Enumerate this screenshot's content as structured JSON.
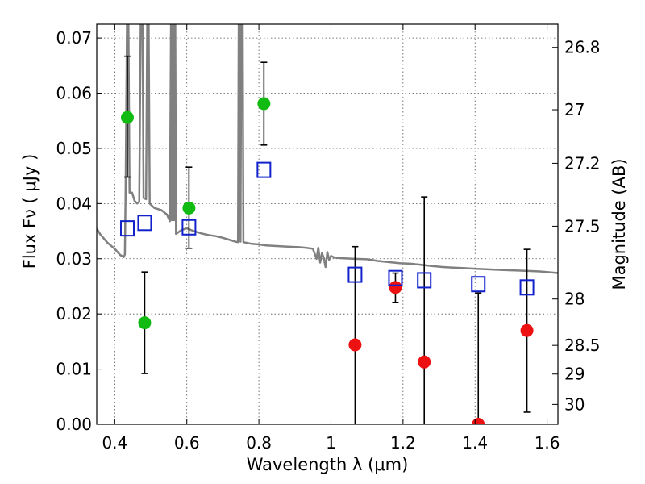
{
  "chart_data": {
    "type": "scatter",
    "xlabel": "Wavelength  λ (μm)",
    "ylabel": "Flux  Fν  ( μJy )",
    "ylabel_right": "Magnitude (AB)",
    "xlim": [
      0.35,
      1.63
    ],
    "ylim": [
      0.0,
      0.0725
    ],
    "grid": true,
    "x_ticks": [
      0.4,
      0.6,
      0.8,
      1.0,
      1.2,
      1.4,
      1.6
    ],
    "x_tick_labels": [
      "0.4",
      "0.6",
      "0.8",
      "1",
      "1.2",
      "1.4",
      "1.6"
    ],
    "y_ticks": [
      0.0,
      0.01,
      0.02,
      0.03,
      0.04,
      0.05,
      0.06,
      0.07
    ],
    "y_tick_labels": [
      "0.00",
      "0.01",
      "0.02",
      "0.03",
      "0.04",
      "0.05",
      "0.06",
      "0.07"
    ],
    "right_ticks": [
      {
        "label": "26.8",
        "flux": 0.0683
      },
      {
        "label": "27",
        "flux": 0.057
      },
      {
        "label": "27.2",
        "flux": 0.0473
      },
      {
        "label": "27.5",
        "flux": 0.0359
      },
      {
        "label": "28",
        "flux": 0.0227
      },
      {
        "label": "28.5",
        "flux": 0.0143
      },
      {
        "label": "29",
        "flux": 0.0091
      },
      {
        "label": "30",
        "flux": 0.0036
      }
    ],
    "colors": {
      "green": "#11bb11",
      "red": "#ee1111",
      "blue": "#1122cc",
      "model": "#808080",
      "errorbar": "#000000",
      "grid": "#555555"
    },
    "series": [
      {
        "marker": "circle",
        "color": "green",
        "points": [
          {
            "x": 0.435,
            "y": 0.0556,
            "ylo": 0.0448,
            "yhi": 0.0667
          },
          {
            "x": 0.483,
            "y": 0.0184,
            "ylo": 0.0092,
            "yhi": 0.0276
          },
          {
            "x": 0.606,
            "y": 0.0392,
            "ylo": 0.0319,
            "yhi": 0.0466
          },
          {
            "x": 0.814,
            "y": 0.0581,
            "ylo": 0.0506,
            "yhi": 0.0656
          }
        ]
      },
      {
        "marker": "circle",
        "color": "red",
        "points": [
          {
            "x": 1.067,
            "y": 0.0144,
            "ylo": 0.0,
            "yhi": 0.0322
          },
          {
            "x": 1.179,
            "y": 0.0248,
            "ylo": 0.0221,
            "yhi": 0.0274
          },
          {
            "x": 1.259,
            "y": 0.0113,
            "ylo": 0.0,
            "yhi": 0.0412
          },
          {
            "x": 1.409,
            "y": 0.0,
            "ylo": 0.0,
            "yhi": 0.0238
          },
          {
            "x": 1.544,
            "y": 0.017,
            "ylo": 0.0022,
            "yhi": 0.0317
          }
        ]
      },
      {
        "marker": "open-square",
        "color": "blue",
        "points": [
          {
            "x": 0.435,
            "y": 0.0355
          },
          {
            "x": 0.483,
            "y": 0.0365
          },
          {
            "x": 0.606,
            "y": 0.0357
          },
          {
            "x": 0.814,
            "y": 0.0461
          },
          {
            "x": 1.067,
            "y": 0.0271
          },
          {
            "x": 1.179,
            "y": 0.0265
          },
          {
            "x": 1.259,
            "y": 0.0261
          },
          {
            "x": 1.409,
            "y": 0.0254
          },
          {
            "x": 1.544,
            "y": 0.0248
          }
        ]
      }
    ],
    "model_spectrum": {
      "color": "model",
      "points": [
        [
          0.35,
          0.0355
        ],
        [
          0.36,
          0.0344
        ],
        [
          0.38,
          0.0329
        ],
        [
          0.4,
          0.0318
        ],
        [
          0.415,
          0.0307
        ],
        [
          0.425,
          0.0303
        ],
        [
          0.428,
          0.0308
        ],
        [
          0.43,
          0.042
        ],
        [
          0.434,
          0.0725
        ],
        [
          0.438,
          0.0725
        ],
        [
          0.441,
          0.042
        ],
        [
          0.448,
          0.042
        ],
        [
          0.455,
          0.0405
        ],
        [
          0.462,
          0.04
        ],
        [
          0.468,
          0.0403
        ],
        [
          0.472,
          0.0725
        ],
        [
          0.477,
          0.0725
        ],
        [
          0.48,
          0.041
        ],
        [
          0.487,
          0.0408
        ],
        [
          0.49,
          0.0725
        ],
        [
          0.494,
          0.0725
        ],
        [
          0.497,
          0.04
        ],
        [
          0.51,
          0.0392
        ],
        [
          0.53,
          0.0388
        ],
        [
          0.545,
          0.038
        ],
        [
          0.553,
          0.0368
        ],
        [
          0.556,
          0.0725
        ],
        [
          0.558,
          0.037
        ],
        [
          0.56,
          0.0725
        ],
        [
          0.562,
          0.037
        ],
        [
          0.564,
          0.0725
        ],
        [
          0.566,
          0.037
        ],
        [
          0.568,
          0.0725
        ],
        [
          0.57,
          0.0345
        ],
        [
          0.585,
          0.0352
        ],
        [
          0.6,
          0.0355
        ],
        [
          0.62,
          0.035
        ],
        [
          0.64,
          0.0346
        ],
        [
          0.66,
          0.0343
        ],
        [
          0.68,
          0.0341
        ],
        [
          0.7,
          0.0338
        ],
        [
          0.72,
          0.0334
        ],
        [
          0.735,
          0.0331
        ],
        [
          0.742,
          0.033
        ],
        [
          0.744,
          0.0725
        ],
        [
          0.747,
          0.0725
        ],
        [
          0.749,
          0.0331
        ],
        [
          0.751,
          0.0725
        ],
        [
          0.755,
          0.0725
        ],
        [
          0.757,
          0.033
        ],
        [
          0.78,
          0.0327
        ],
        [
          0.8,
          0.0326
        ],
        [
          0.82,
          0.0324
        ],
        [
          0.85,
          0.0323
        ],
        [
          0.88,
          0.0322
        ],
        [
          0.91,
          0.0321
        ],
        [
          0.93,
          0.032
        ],
        [
          0.95,
          0.0318
        ],
        [
          0.96,
          0.03
        ],
        [
          0.965,
          0.032
        ],
        [
          0.97,
          0.0293
        ],
        [
          0.975,
          0.031
        ],
        [
          0.98,
          0.0302
        ],
        [
          0.985,
          0.0285
        ],
        [
          0.99,
          0.0312
        ],
        [
          0.995,
          0.0298
        ],
        [
          1.0,
          0.0305
        ],
        [
          1.01,
          0.0302
        ],
        [
          1.03,
          0.0301
        ],
        [
          1.06,
          0.03
        ],
        [
          1.1,
          0.0299
        ],
        [
          1.13,
          0.0296
        ],
        [
          1.16,
          0.0294
        ],
        [
          1.19,
          0.0292
        ],
        [
          1.22,
          0.0291
        ],
        [
          1.25,
          0.0289
        ],
        [
          1.28,
          0.0287
        ],
        [
          1.31,
          0.0285
        ],
        [
          1.34,
          0.0284
        ],
        [
          1.37,
          0.0283
        ],
        [
          1.4,
          0.0282
        ],
        [
          1.43,
          0.0281
        ],
        [
          1.46,
          0.028
        ],
        [
          1.5,
          0.0279
        ],
        [
          1.54,
          0.0278
        ],
        [
          1.58,
          0.0277
        ],
        [
          1.63,
          0.0274
        ]
      ]
    }
  }
}
